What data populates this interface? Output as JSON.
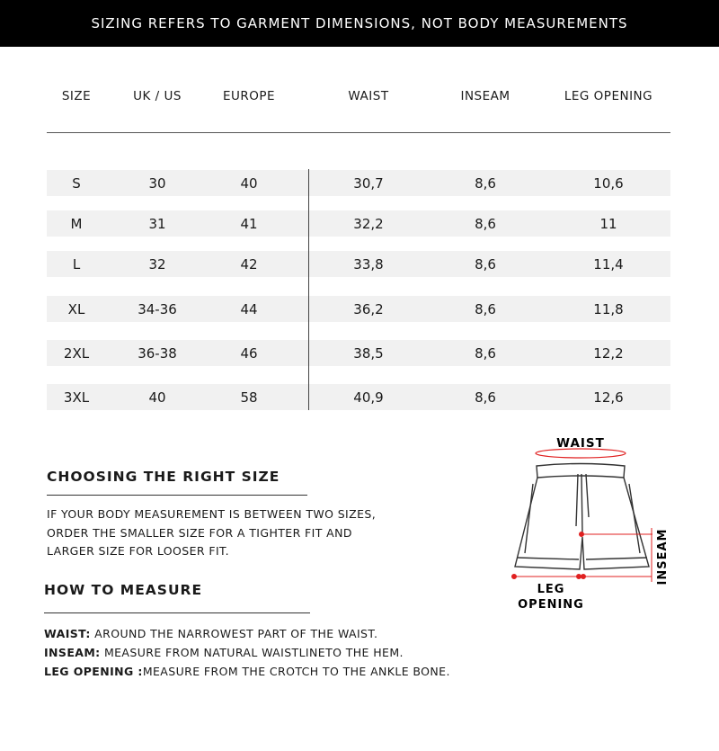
{
  "banner": "SIZING REFERS TO GARMENT DIMENSIONS, NOT BODY MEASUREMENTS",
  "table": {
    "headers": [
      "SIZE",
      "UK / US",
      "EUROPE",
      "WAIST",
      "INSEAM",
      "LEG OPENING"
    ],
    "rows": [
      [
        "S",
        "30",
        "40",
        "30,7",
        "8,6",
        "10,6"
      ],
      [
        "M",
        "31",
        "41",
        "32,2",
        "8,6",
        "11"
      ],
      [
        "L",
        "32",
        "42",
        "33,8",
        "8,6",
        "11,4"
      ],
      [
        "XL",
        "34-36",
        "44",
        "36,2",
        "8,6",
        "11,8"
      ],
      [
        "2XL",
        "36-38",
        "46",
        "38,5",
        "8,6",
        "12,2"
      ],
      [
        "3XL",
        "40",
        "58",
        "40,9",
        "8,6",
        "12,6"
      ]
    ]
  },
  "choosing": {
    "title": "CHOOSING THE RIGHT SIZE",
    "lines": [
      "IF YOUR BODY MEASUREMENT IS BETWEEN TWO SIZES,",
      "ORDER THE SMALLER SIZE FOR A TIGHTER FIT AND",
      "LARGER SIZE FOR LOOSER FIT."
    ]
  },
  "measure": {
    "title": "HOW TO MEASURE",
    "items": [
      {
        "label": "WAIST:",
        "text": " AROUND THE NARROWEST PART OF THE WAIST."
      },
      {
        "label": "INSEAM:",
        "text": " MEASURE FROM NATURAL WAISTLINETO THE HEM."
      },
      {
        "label": "LEG OPENING :",
        "text": "MEASURE FROM THE CROTCH TO THE ANKLE BONE."
      }
    ]
  },
  "diagram": {
    "waist": "WAIST",
    "inseam": "INSEAM",
    "leg1": "LEG",
    "leg2": "OPENING",
    "accent": "#e02020"
  }
}
